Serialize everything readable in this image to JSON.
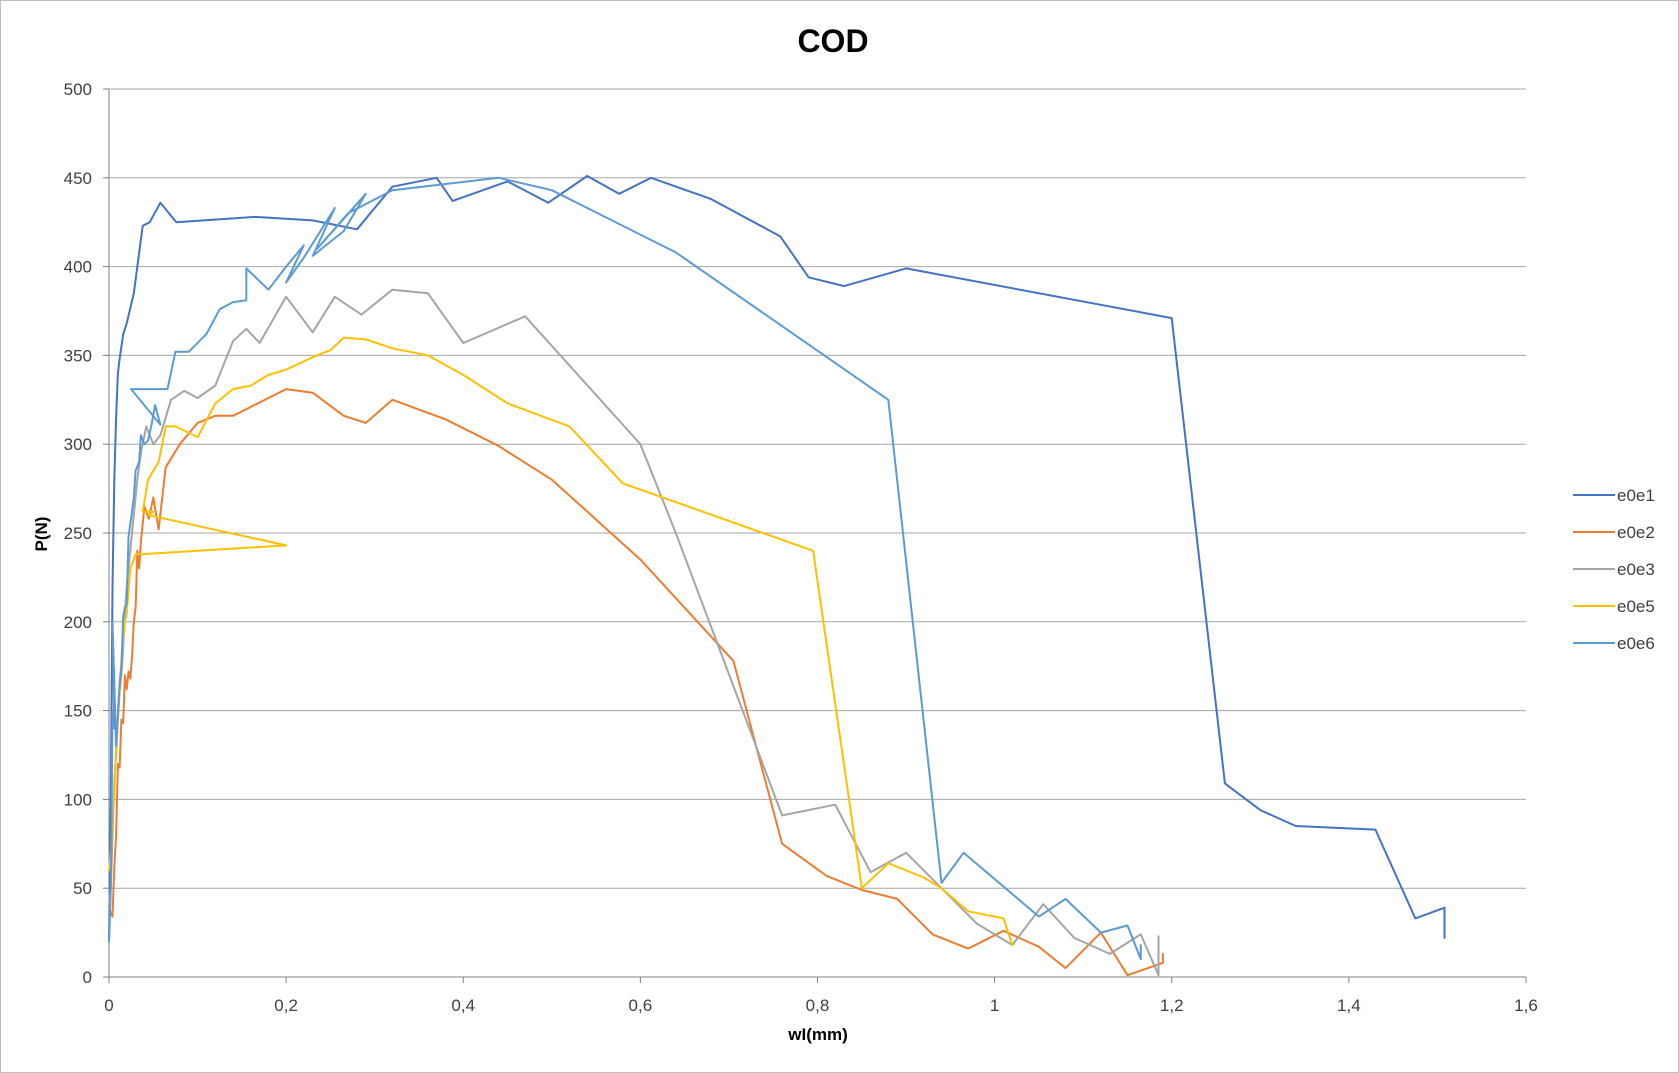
{
  "chart_data": {
    "type": "line",
    "title": "COD",
    "xlabel": "wI(mm)",
    "ylabel": "P(N)",
    "xlim": [
      0,
      1.6
    ],
    "ylim": [
      0,
      500
    ],
    "x_ticks": [
      "0",
      "0,2",
      "0,4",
      "0,6",
      "0,8",
      "1",
      "1,2",
      "1,4",
      "1,6"
    ],
    "y_ticks": [
      "0",
      "50",
      "100",
      "150",
      "200",
      "250",
      "300",
      "350",
      "400",
      "450",
      "500"
    ],
    "grid": "horizontal",
    "legend_position": "right",
    "series": [
      {
        "name": "e0e1",
        "color": "#4472c4",
        "x": [
          0.0,
          0.002,
          0.004,
          0.006,
          0.008,
          0.01,
          0.012,
          0.016,
          0.02,
          0.028,
          0.038,
          0.046,
          0.058,
          0.076,
          0.165,
          0.23,
          0.28,
          0.32,
          0.37,
          0.388,
          0.45,
          0.496,
          0.54,
          0.576,
          0.612,
          0.68,
          0.758,
          0.79,
          0.83,
          0.9,
          1.2,
          1.26,
          1.3,
          1.34,
          1.43,
          1.475,
          1.508,
          1.508
        ],
        "y": [
          20,
          100,
          220,
          280,
          315,
          340,
          348,
          362,
          368,
          385,
          423,
          425,
          436,
          425,
          428,
          426,
          421,
          445,
          450,
          437,
          448,
          436,
          451,
          441,
          450,
          438,
          417,
          394,
          389,
          399,
          371,
          109,
          94,
          85,
          83,
          33,
          39,
          22
        ]
      },
      {
        "name": "e0e2",
        "color": "#ed7d31",
        "x": [
          0.0,
          0.002,
          0.004,
          0.006,
          0.008,
          0.01,
          0.012,
          0.014,
          0.016,
          0.018,
          0.02,
          0.022,
          0.024,
          0.026,
          0.028,
          0.03,
          0.032,
          0.034,
          0.036,
          0.04,
          0.045,
          0.05,
          0.056,
          0.064,
          0.08,
          0.1,
          0.12,
          0.14,
          0.2,
          0.23,
          0.265,
          0.29,
          0.32,
          0.38,
          0.44,
          0.5,
          0.6,
          0.705,
          0.76,
          0.81,
          0.85,
          0.89,
          0.93,
          0.97,
          1.01,
          1.05,
          1.08,
          1.12,
          1.15,
          1.19,
          1.19
        ],
        "y": [
          40,
          36,
          34,
          62,
          80,
          120,
          118,
          145,
          143,
          170,
          162,
          172,
          168,
          180,
          200,
          208,
          240,
          230,
          245,
          265,
          258,
          270,
          252,
          287,
          300,
          312,
          316,
          316,
          331,
          329,
          316,
          312,
          325,
          314,
          299,
          280,
          235,
          178,
          75,
          57,
          49,
          44,
          24,
          16,
          26,
          17,
          5,
          25,
          1,
          8,
          13
        ]
      },
      {
        "name": "e0e3",
        "color": "#a5a5a5",
        "x": [
          0.0,
          0.002,
          0.004,
          0.006,
          0.008,
          0.01,
          0.012,
          0.014,
          0.016,
          0.018,
          0.02,
          0.022,
          0.025,
          0.028,
          0.032,
          0.036,
          0.042,
          0.05,
          0.058,
          0.07,
          0.085,
          0.1,
          0.12,
          0.14,
          0.155,
          0.17,
          0.2,
          0.23,
          0.255,
          0.285,
          0.32,
          0.36,
          0.4,
          0.47,
          0.6,
          0.64,
          0.76,
          0.82,
          0.86,
          0.9,
          0.98,
          1.02,
          1.055,
          1.09,
          1.13,
          1.165,
          1.185,
          1.185
        ],
        "y": [
          40,
          50,
          80,
          110,
          125,
          145,
          160,
          170,
          185,
          205,
          220,
          230,
          245,
          260,
          280,
          295,
          310,
          300,
          305,
          325,
          330,
          326,
          333,
          358,
          365,
          357,
          383,
          363,
          383,
          373,
          387,
          385,
          357,
          372,
          300,
          250,
          91,
          97,
          59,
          70,
          30,
          18,
          41,
          22,
          13,
          24,
          1,
          23
        ]
      },
      {
        "name": "e0e5",
        "color": "#ffc000",
        "x": [
          0.0,
          0.002,
          0.004,
          0.006,
          0.008,
          0.01,
          0.012,
          0.014,
          0.016,
          0.018,
          0.02,
          0.024,
          0.03,
          0.036,
          0.2,
          0.045,
          0.05,
          0.038,
          0.044,
          0.056,
          0.064,
          0.075,
          0.1,
          0.12,
          0.14,
          0.16,
          0.18,
          0.2,
          0.23,
          0.25,
          0.265,
          0.29,
          0.32,
          0.36,
          0.4,
          0.45,
          0.52,
          0.58,
          0.795,
          0.85,
          0.88,
          0.92,
          0.94,
          0.97,
          1.01,
          1.02
        ],
        "y": [
          60,
          70,
          90,
          105,
          130,
          150,
          165,
          178,
          190,
          200,
          205,
          230,
          238,
          238,
          243,
          260,
          262,
          262,
          280,
          290,
          310,
          310,
          304,
          323,
          331,
          333,
          339,
          342,
          349,
          353,
          360,
          359,
          354,
          350,
          339,
          323,
          310,
          278,
          240,
          50,
          64,
          56,
          50,
          37,
          33,
          18
        ]
      },
      {
        "name": "e0e6",
        "color": "#5b9bd5",
        "x": [
          0.0,
          0.002,
          0.003,
          0.004,
          0.006,
          0.004,
          0.008,
          0.01,
          0.012,
          0.014,
          0.016,
          0.018,
          0.02,
          0.022,
          0.024,
          0.026,
          0.028,
          0.03,
          0.034,
          0.036,
          0.04,
          0.044,
          0.048,
          0.052,
          0.058,
          0.025,
          0.066,
          0.075,
          0.09,
          0.11,
          0.125,
          0.14,
          0.155,
          0.155,
          0.18,
          0.2,
          0.22,
          0.2,
          0.22,
          0.255,
          0.23,
          0.265,
          0.29,
          0.235,
          0.27,
          0.32,
          0.44,
          0.5,
          0.64,
          0.88,
          0.94,
          0.965,
          1.05,
          1.08,
          1.12,
          1.15,
          1.165,
          1.165
        ],
        "y": [
          20,
          50,
          100,
          150,
          140,
          200,
          130,
          148,
          165,
          175,
          203,
          208,
          210,
          248,
          255,
          262,
          270,
          285,
          290,
          305,
          300,
          302,
          311,
          322,
          311,
          331,
          331,
          352,
          352,
          362,
          376,
          380,
          381,
          399,
          387,
          400,
          412,
          391,
          405,
          433,
          406,
          420,
          441,
          410,
          430,
          443,
          450,
          443,
          408,
          325,
          53,
          70,
          34,
          44,
          25,
          29,
          10,
          18
        ]
      }
    ]
  }
}
